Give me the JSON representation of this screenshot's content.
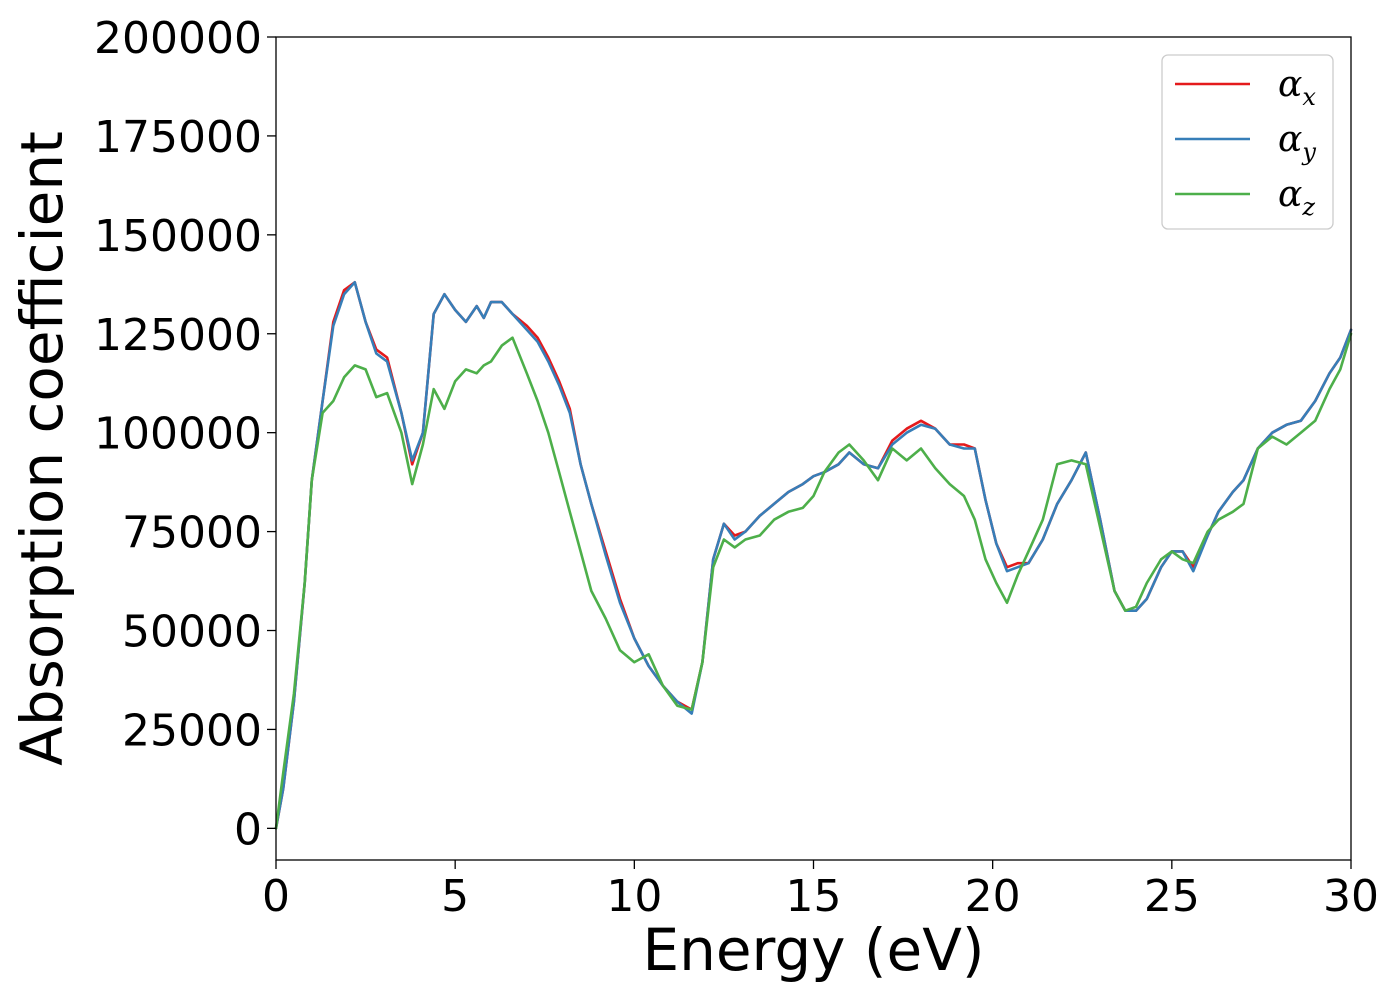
{
  "chart_data": {
    "type": "line",
    "xlabel": "Energy (eV)",
    "ylabel": "Absorption coefficient",
    "xlim": [
      0,
      30
    ],
    "ylim": [
      -8000,
      200000
    ],
    "xticks": [
      0,
      5,
      10,
      15,
      20,
      25,
      30
    ],
    "xtick_labels": [
      "0",
      "5",
      "10",
      "15",
      "20",
      "25",
      "30"
    ],
    "yticks": [
      0,
      25000,
      50000,
      75000,
      100000,
      125000,
      150000,
      175000,
      200000
    ],
    "ytick_labels": [
      "0",
      "25000",
      "50000",
      "75000",
      "100000",
      "125000",
      "150000",
      "175000",
      "200000"
    ],
    "grid": false,
    "legend_position": "top-right",
    "series": [
      {
        "name": "α_x",
        "label_main": "α",
        "label_sub": "x",
        "color": "#e41a1c",
        "x": [
          0,
          0.2,
          0.5,
          0.8,
          1.0,
          1.3,
          1.6,
          1.9,
          2.2,
          2.5,
          2.8,
          3.1,
          3.5,
          3.8,
          4.1,
          4.4,
          4.7,
          5.0,
          5.3,
          5.6,
          5.8,
          6.0,
          6.3,
          6.6,
          7.0,
          7.3,
          7.6,
          7.9,
          8.2,
          8.5,
          8.8,
          9.2,
          9.6,
          10.0,
          10.4,
          10.8,
          11.2,
          11.6,
          11.9,
          12.2,
          12.5,
          12.8,
          13.1,
          13.5,
          13.9,
          14.3,
          14.7,
          15.0,
          15.3,
          15.7,
          16.0,
          16.4,
          16.8,
          17.2,
          17.6,
          18.0,
          18.4,
          18.8,
          19.2,
          19.5,
          19.8,
          20.1,
          20.4,
          20.7,
          21.0,
          21.4,
          21.8,
          22.2,
          22.6,
          23.0,
          23.4,
          23.7,
          24.0,
          24.3,
          24.7,
          25.0,
          25.3,
          25.6,
          26.0,
          26.3,
          26.7,
          27.0,
          27.4,
          27.8,
          28.2,
          28.6,
          29.0,
          29.4,
          29.7,
          30.0
        ],
        "y": [
          0,
          10000,
          32000,
          62000,
          88000,
          108000,
          128000,
          136000,
          138000,
          128000,
          121000,
          119000,
          105000,
          92000,
          100000,
          130000,
          135000,
          131000,
          128000,
          132000,
          129000,
          133000,
          133000,
          130000,
          127000,
          124000,
          119000,
          113000,
          106000,
          92000,
          82000,
          70000,
          58000,
          48000,
          41000,
          36000,
          32000,
          30000,
          42000,
          68000,
          77000,
          74000,
          75000,
          79000,
          82000,
          85000,
          87000,
          89000,
          90000,
          92000,
          95000,
          92000,
          91000,
          98000,
          101000,
          103000,
          101000,
          97000,
          97000,
          96000,
          83000,
          72000,
          66000,
          67000,
          67000,
          73000,
          82000,
          88000,
          95000,
          78000,
          60000,
          55000,
          55000,
          58000,
          66000,
          70000,
          70000,
          66000,
          74000,
          80000,
          85000,
          88000,
          96000,
          100000,
          102000,
          103000,
          108000,
          115000,
          119000,
          126000
        ]
      },
      {
        "name": "α_y",
        "label_main": "α",
        "label_sub": "y",
        "color": "#377eb8",
        "x": [
          0,
          0.2,
          0.5,
          0.8,
          1.0,
          1.3,
          1.6,
          1.9,
          2.2,
          2.5,
          2.8,
          3.1,
          3.5,
          3.8,
          4.1,
          4.4,
          4.7,
          5.0,
          5.3,
          5.6,
          5.8,
          6.0,
          6.3,
          6.6,
          7.0,
          7.3,
          7.6,
          7.9,
          8.2,
          8.5,
          8.8,
          9.2,
          9.6,
          10.0,
          10.4,
          10.8,
          11.2,
          11.6,
          11.9,
          12.2,
          12.5,
          12.8,
          13.1,
          13.5,
          13.9,
          14.3,
          14.7,
          15.0,
          15.3,
          15.7,
          16.0,
          16.4,
          16.8,
          17.2,
          17.6,
          18.0,
          18.4,
          18.8,
          19.2,
          19.5,
          19.8,
          20.1,
          20.4,
          20.7,
          21.0,
          21.4,
          21.8,
          22.2,
          22.6,
          23.0,
          23.4,
          23.7,
          24.0,
          24.3,
          24.7,
          25.0,
          25.3,
          25.6,
          26.0,
          26.3,
          26.7,
          27.0,
          27.4,
          27.8,
          28.2,
          28.6,
          29.0,
          29.4,
          29.7,
          30.0
        ],
        "y": [
          0,
          10000,
          32000,
          62000,
          88000,
          108000,
          127000,
          135000,
          138000,
          128000,
          120000,
          118000,
          105000,
          93000,
          100000,
          130000,
          135000,
          131000,
          128000,
          132000,
          129000,
          133000,
          133000,
          130000,
          126000,
          123000,
          118000,
          112000,
          105000,
          92000,
          82000,
          69000,
          57000,
          48000,
          41000,
          36000,
          32000,
          29000,
          42000,
          68000,
          77000,
          73000,
          75000,
          79000,
          82000,
          85000,
          87000,
          89000,
          90000,
          92000,
          95000,
          92000,
          91000,
          97000,
          100000,
          102000,
          101000,
          97000,
          96000,
          96000,
          83000,
          72000,
          65000,
          66000,
          67000,
          73000,
          82000,
          88000,
          95000,
          78000,
          60000,
          55000,
          55000,
          58000,
          66000,
          70000,
          70000,
          65000,
          74000,
          80000,
          85000,
          88000,
          96000,
          100000,
          102000,
          103000,
          108000,
          115000,
          119000,
          126000
        ]
      },
      {
        "name": "α_z",
        "label_main": "α",
        "label_sub": "z",
        "color": "#4daf4a",
        "x": [
          0,
          0.2,
          0.5,
          0.8,
          1.0,
          1.3,
          1.6,
          1.9,
          2.2,
          2.5,
          2.8,
          3.1,
          3.5,
          3.8,
          4.1,
          4.4,
          4.7,
          5.0,
          5.3,
          5.6,
          5.8,
          6.0,
          6.3,
          6.6,
          7.0,
          7.3,
          7.6,
          7.9,
          8.2,
          8.5,
          8.8,
          9.2,
          9.6,
          10.0,
          10.4,
          10.8,
          11.2,
          11.6,
          11.9,
          12.2,
          12.5,
          12.8,
          13.1,
          13.5,
          13.9,
          14.3,
          14.7,
          15.0,
          15.3,
          15.7,
          16.0,
          16.4,
          16.8,
          17.2,
          17.6,
          18.0,
          18.4,
          18.8,
          19.2,
          19.5,
          19.8,
          20.1,
          20.4,
          20.7,
          21.0,
          21.4,
          21.8,
          22.2,
          22.6,
          23.0,
          23.4,
          23.7,
          24.0,
          24.3,
          24.7,
          25.0,
          25.3,
          25.6,
          26.0,
          26.3,
          26.7,
          27.0,
          27.4,
          27.8,
          28.2,
          28.6,
          29.0,
          29.4,
          29.7,
          30.0
        ],
        "y": [
          0,
          14000,
          34000,
          62000,
          88000,
          105000,
          108000,
          114000,
          117000,
          116000,
          109000,
          110000,
          100000,
          87000,
          97000,
          111000,
          106000,
          113000,
          116000,
          115000,
          117000,
          118000,
          122000,
          124000,
          115000,
          108000,
          100000,
          90000,
          80000,
          70000,
          60000,
          53000,
          45000,
          42000,
          44000,
          36000,
          31000,
          30000,
          42000,
          66000,
          73000,
          71000,
          73000,
          74000,
          78000,
          80000,
          81000,
          84000,
          90000,
          95000,
          97000,
          93000,
          88000,
          96000,
          93000,
          96000,
          91000,
          87000,
          84000,
          78000,
          68000,
          62000,
          57000,
          64000,
          70000,
          78000,
          92000,
          93000,
          92000,
          76000,
          60000,
          55000,
          56000,
          62000,
          68000,
          70000,
          68000,
          67000,
          75000,
          78000,
          80000,
          82000,
          96000,
          99000,
          97000,
          100000,
          103000,
          111000,
          116000,
          125000
        ]
      }
    ]
  }
}
